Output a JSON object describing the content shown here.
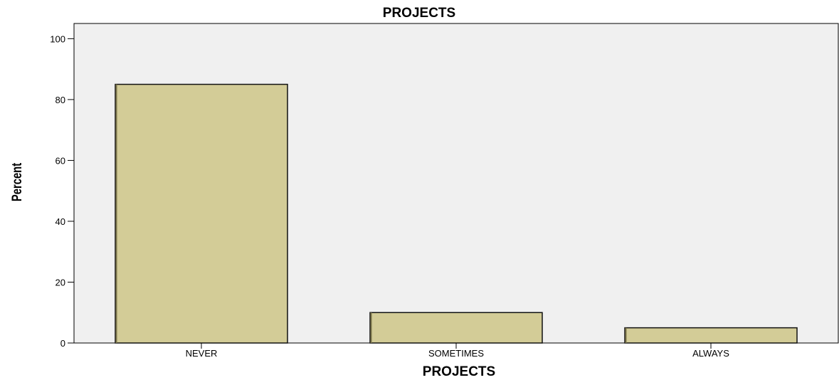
{
  "chart_data": {
    "type": "bar",
    "title": "PROJECTS",
    "xlabel": "PROJECTS",
    "ylabel": "Percent",
    "categories": [
      "NEVER",
      "SOMETIMES",
      "ALWAYS"
    ],
    "values": [
      85,
      10,
      5
    ],
    "ylim": [
      0,
      105
    ],
    "yticks": [
      "0",
      "20",
      "40",
      "60",
      "80",
      "100"
    ],
    "grid": false,
    "legend": "none",
    "colors": {
      "bar_fill": "#d3cc97",
      "bar_stroke": "#111111",
      "plot_background": "#f0f0f0",
      "axis": "#000000"
    }
  }
}
